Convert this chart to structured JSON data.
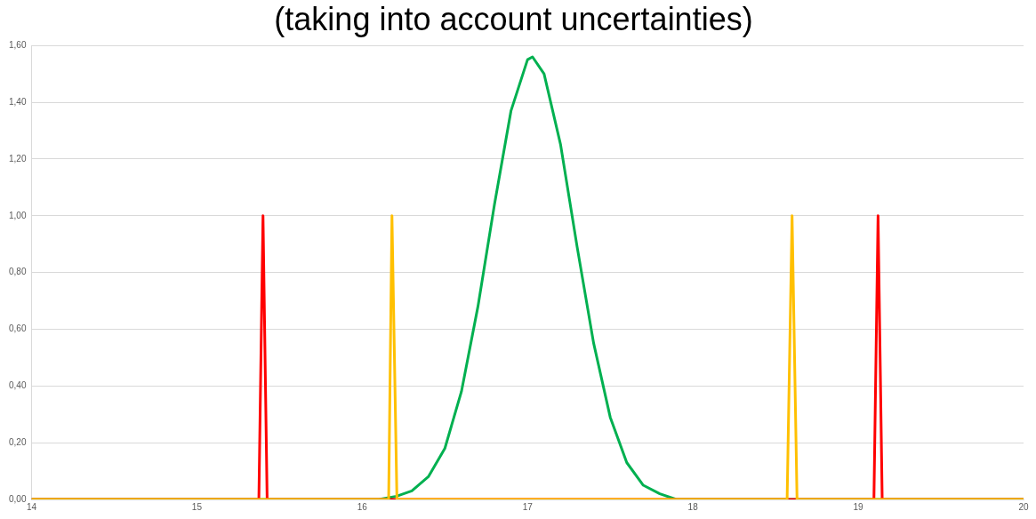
{
  "chart_data": {
    "type": "line",
    "title": "(taking into account uncertainties)",
    "xlim": [
      14,
      20
    ],
    "xticks": [
      14,
      15,
      16,
      17,
      18,
      19,
      20
    ],
    "ylim": [
      0,
      1.6
    ],
    "yticks": [
      {
        "value": 0,
        "label": "0,00"
      },
      {
        "value": 0.2,
        "label": "0,20"
      },
      {
        "value": 0.4,
        "label": "0,40"
      },
      {
        "value": 0.6,
        "label": "0,60"
      },
      {
        "value": 0.8,
        "label": "0,80"
      },
      {
        "value": 1,
        "label": "1,00"
      },
      {
        "value": 1.2,
        "label": "1,20"
      },
      {
        "value": 1.4,
        "label": "1,40"
      },
      {
        "value": 1.6,
        "label": "1,60"
      }
    ],
    "grid": "y",
    "legend": false,
    "marker": "none",
    "line_style": "solid",
    "series": [
      {
        "color": "#ffc000",
        "x": [
          14,
          16.16,
          16.18,
          16.21,
          18.57,
          18.6,
          18.63,
          20
        ],
        "values": [
          0,
          0,
          1,
          0,
          0,
          1,
          0,
          0
        ]
      },
      {
        "color": "#ff0000",
        "x": [
          14,
          15.375,
          15.4,
          15.425,
          19.095,
          19.12,
          19.145,
          20
        ],
        "values": [
          0,
          0,
          1,
          0,
          0,
          1,
          0,
          0
        ]
      },
      {
        "color": "#00b050",
        "x": [
          14,
          16,
          16.1,
          16.2,
          16.3,
          16.4,
          16.5,
          16.6,
          16.7,
          16.8,
          16.9,
          17,
          17.03,
          17.1,
          17.2,
          17.3,
          17.4,
          17.5,
          17.6,
          17.7,
          17.8,
          17.9,
          18,
          20
        ],
        "values": [
          0,
          0,
          0,
          0.01,
          0.03,
          0.08,
          0.18,
          0.38,
          0.68,
          1.04,
          1.37,
          1.55,
          1.56,
          1.5,
          1.25,
          0.89,
          0.55,
          0.29,
          0.13,
          0.05,
          0.02,
          0,
          0,
          0
        ]
      }
    ]
  }
}
